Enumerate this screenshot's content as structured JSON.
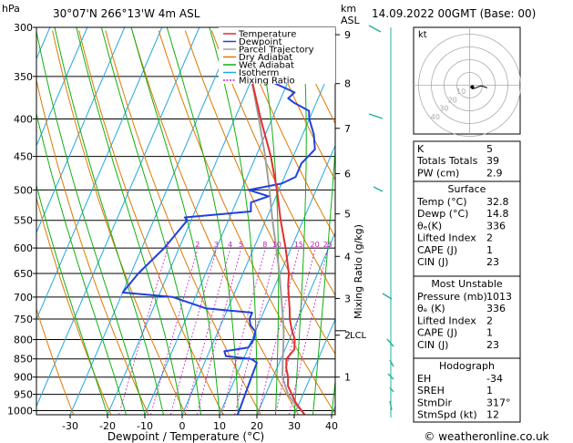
{
  "header": {
    "hpa_label": "hPa",
    "location": "30°07'N  266°13'W  4m  ASL",
    "km_label": "km",
    "asl_label": "ASL",
    "datetime": "14.09.2022  00GMT  (Base: 00)"
  },
  "footer": {
    "copyright": "© weatheronline.co.uk"
  },
  "chart_data": {
    "type": "skew-t",
    "title": "",
    "xlabel": "Dewpoint / Temperature (°C)",
    "ylabel_right": "Mixing Ratio (g/kg)",
    "x_ticks": [
      -30,
      -20,
      -10,
      0,
      10,
      20,
      30,
      40
    ],
    "pressure_levels": [
      300,
      350,
      400,
      450,
      500,
      550,
      600,
      650,
      700,
      750,
      800,
      850,
      900,
      950,
      1000
    ],
    "altitude_km_ticks": [
      {
        "p": 307,
        "label": "9"
      },
      {
        "p": 358,
        "label": "8"
      },
      {
        "p": 412,
        "label": "7"
      },
      {
        "p": 475,
        "label": "6"
      },
      {
        "p": 539,
        "label": "5"
      },
      {
        "p": 616,
        "label": "4"
      },
      {
        "p": 703,
        "label": "3"
      },
      {
        "p": 789,
        "label": "2"
      },
      {
        "p": 900,
        "label": "1"
      }
    ],
    "lcl": {
      "p": 778,
      "label": "LCL"
    },
    "mixing_ratio_labels": [
      "1",
      "2",
      "3",
      "4",
      "5",
      "8",
      "10",
      "15",
      "20",
      "25"
    ],
    "mixing_ratio_values": [
      1,
      2,
      3,
      4,
      5,
      8,
      10,
      15,
      20,
      25
    ],
    "legend": [
      {
        "name": "Temperature",
        "color": "#e03030",
        "dashed": false
      },
      {
        "name": "Dewpoint",
        "color": "#2040e0",
        "dashed": false
      },
      {
        "name": "Parcel Trajectory",
        "color": "#a0a0a0",
        "dashed": false
      },
      {
        "name": "Dry Adiabat",
        "color": "#e07800",
        "dashed": false
      },
      {
        "name": "Wet Adiabat",
        "color": "#10b010",
        "dashed": false
      },
      {
        "name": "Isotherm",
        "color": "#20a8e0",
        "dashed": false
      },
      {
        "name": "Mixing Ratio",
        "color": "#c020c0",
        "dashed": true
      }
    ],
    "temperature": [
      [
        1013,
        32.8
      ],
      [
        1000,
        31.5
      ],
      [
        975,
        29
      ],
      [
        950,
        27
      ],
      [
        925,
        25
      ],
      [
        900,
        24
      ],
      [
        875,
        22.5
      ],
      [
        850,
        21.5
      ],
      [
        825,
        22.5
      ],
      [
        800,
        21.5
      ],
      [
        775,
        19.5
      ],
      [
        750,
        17.8
      ],
      [
        725,
        16.5
      ],
      [
        700,
        15
      ],
      [
        675,
        13.5
      ],
      [
        650,
        12.3
      ],
      [
        600,
        8.5
      ],
      [
        550,
        4
      ],
      [
        500,
        -0.5
      ],
      [
        450,
        -6
      ],
      [
        400,
        -13
      ],
      [
        350,
        -20.5
      ],
      [
        300,
        -29
      ]
    ],
    "dewpoint": [
      [
        1013,
        14.8
      ],
      [
        1000,
        14.8
      ],
      [
        950,
        14.5
      ],
      [
        900,
        14.2
      ],
      [
        860,
        14
      ],
      [
        850,
        12
      ],
      [
        843,
        5
      ],
      [
        830,
        4
      ],
      [
        820,
        10
      ],
      [
        800,
        10.5
      ],
      [
        780,
        10
      ],
      [
        765,
        8
      ],
      [
        750,
        7
      ],
      [
        735,
        7
      ],
      [
        725,
        -6
      ],
      [
        700,
        -16
      ],
      [
        690,
        -30
      ],
      [
        650,
        -28
      ],
      [
        600,
        -24
      ],
      [
        550,
        -21
      ],
      [
        545,
        -22
      ],
      [
        535,
        -5
      ],
      [
        520,
        -6
      ],
      [
        510,
        -2
      ],
      [
        500,
        -8
      ],
      [
        490,
        0
      ],
      [
        480,
        3
      ],
      [
        460,
        3
      ],
      [
        440,
        5
      ],
      [
        420,
        3
      ],
      [
        400,
        0
      ],
      [
        390,
        -1
      ],
      [
        380,
        -6
      ],
      [
        375,
        -8
      ],
      [
        368,
        -7
      ],
      [
        355,
        -15
      ],
      [
        348,
        -18
      ],
      [
        340,
        -20
      ],
      [
        330,
        -16
      ],
      [
        320,
        -15
      ],
      [
        310,
        -13
      ],
      [
        300,
        -11
      ]
    ],
    "parcel": [
      [
        1013,
        32.8
      ],
      [
        975,
        28.5
      ],
      [
        950,
        26
      ],
      [
        900,
        22.5
      ],
      [
        850,
        20.5
      ],
      [
        800,
        18.5
      ],
      [
        778,
        17.5
      ],
      [
        750,
        16
      ],
      [
        700,
        13
      ],
      [
        650,
        9.8
      ],
      [
        600,
        6
      ],
      [
        550,
        1.8
      ],
      [
        500,
        -2.5
      ],
      [
        450,
        -7.5
      ],
      [
        400,
        -13.5
      ],
      [
        350,
        -20.5
      ],
      [
        300,
        -29
      ]
    ],
    "indices": [
      {
        "label": "K",
        "value": "5"
      },
      {
        "label": "Totals Totals",
        "value": "39"
      },
      {
        "label": "PW (cm)",
        "value": "2.9"
      }
    ],
    "surface": {
      "title": "Surface",
      "rows": [
        {
          "label": "Temp (°C)",
          "value": "32.8"
        },
        {
          "label": "Dewp (°C)",
          "value": "14.8"
        },
        {
          "label": "θₑ(K)",
          "value": "336"
        },
        {
          "label": "Lifted Index",
          "value": "2"
        },
        {
          "label": "CAPE (J)",
          "value": "1"
        },
        {
          "label": "CIN (J)",
          "value": "23"
        }
      ]
    },
    "most_unstable": {
      "title": "Most Unstable",
      "rows": [
        {
          "label": "Pressure (mb)",
          "value": "1013"
        },
        {
          "label": "θₑ (K)",
          "value": "336"
        },
        {
          "label": "Lifted Index",
          "value": "2"
        },
        {
          "label": "CAPE (J)",
          "value": "1"
        },
        {
          "label": "CIN (J)",
          "value": "23"
        }
      ]
    },
    "hodograph_table": {
      "title": "Hodograph",
      "rows": [
        {
          "label": "EH",
          "value": "-34"
        },
        {
          "label": "SREH",
          "value": "1"
        },
        {
          "label": "StmDir",
          "value": "317°"
        },
        {
          "label": "StmSpd (kt)",
          "value": "12"
        }
      ]
    },
    "hodograph": {
      "unit_label": "kt",
      "ring_labels": [
        "10",
        "20",
        "30",
        "40"
      ],
      "path": [
        [
          0.5,
          1
        ],
        [
          1,
          1.5
        ],
        [
          2,
          2.5
        ],
        [
          4,
          2
        ],
        [
          6,
          1
        ],
        [
          8,
          0.5
        ],
        [
          10,
          1
        ],
        [
          12,
          1.8
        ]
      ]
    },
    "colors": {
      "temperature": "#e03030",
      "dewpoint": "#2040e0",
      "parcel": "#a0a0a0",
      "dry": "#e07800",
      "wet": "#10b010",
      "isotherm": "#20a8e0",
      "mixing": "#c020c0",
      "wind": "#20b0a0"
    }
  }
}
